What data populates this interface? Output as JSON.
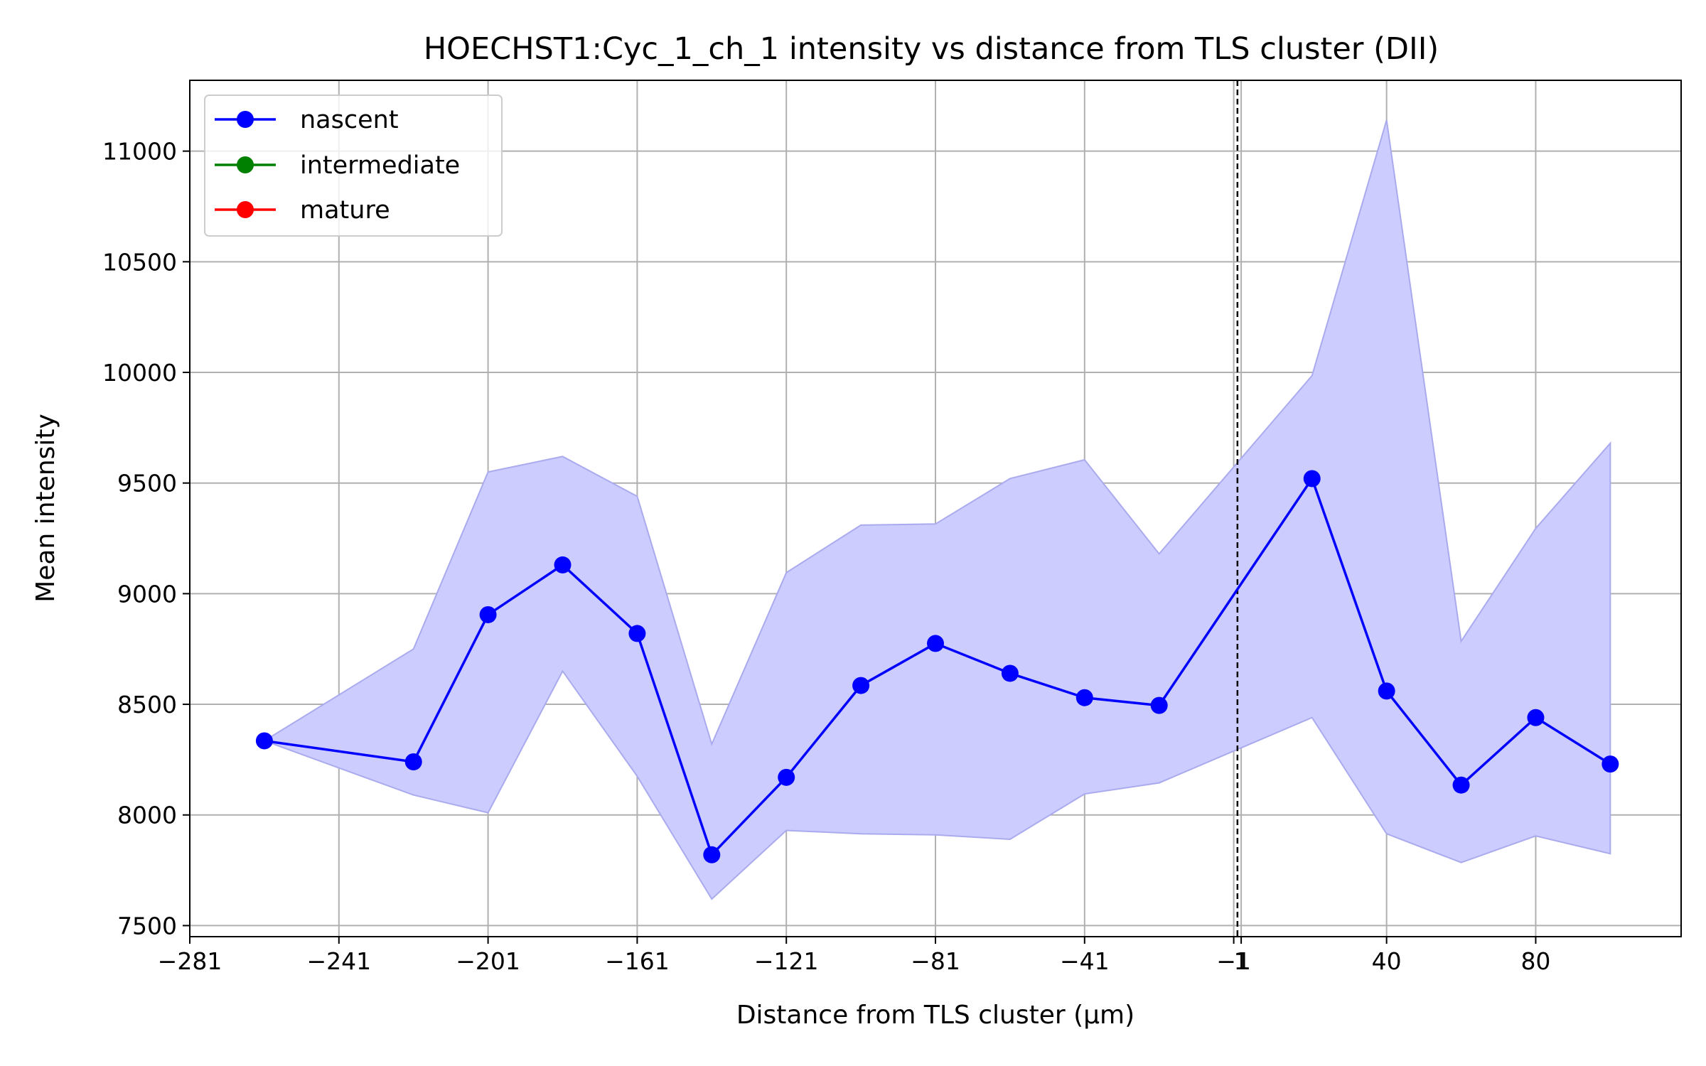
{
  "chart_data": {
    "type": "line",
    "title": "HOECHST1:Cyc_1_ch_1 intensity vs distance from TLS cluster (DII)",
    "xlabel": "Distance from TLS cluster (μm)",
    "ylabel": "Mean intensity",
    "xlim": [
      -281,
      119
    ],
    "ylim": [
      7450,
      11320
    ],
    "x_ticks": [
      -281,
      -241,
      -201,
      -161,
      -121,
      -81,
      -41,
      -1,
      1,
      40,
      80
    ],
    "x_tick_labels": [
      "−281",
      "−241",
      "−201",
      "−161",
      "−121",
      "−81",
      "−41",
      "−1",
      "1",
      "40",
      "80"
    ],
    "y_ticks": [
      7500,
      8000,
      8500,
      9000,
      9500,
      10000,
      10500,
      11000
    ],
    "y_tick_labels": [
      "7500",
      "8000",
      "8500",
      "9000",
      "9500",
      "10000",
      "10500",
      "11000"
    ],
    "grid": true,
    "legend": "top-left",
    "vline_x": 0,
    "series": [
      {
        "name": "nascent",
        "color": "#0000ff",
        "x": [
          -261,
          -221,
          -201,
          -181,
          -161,
          -141,
          -121,
          -101,
          -81,
          -61,
          -41,
          -21,
          20,
          40,
          60,
          80,
          100
        ],
        "y": [
          8335,
          8240,
          8905,
          9130,
          8820,
          7820,
          8170,
          8585,
          8775,
          8640,
          8530,
          8495,
          9520,
          8560,
          8135,
          8440,
          8230
        ],
        "band_upper": [
          8335,
          8750,
          9550,
          9620,
          9440,
          8320,
          9095,
          9310,
          9315,
          9520,
          9605,
          9180,
          9985,
          11140,
          8785,
          9295,
          9680
        ],
        "band_lower": [
          8335,
          8090,
          8010,
          8650,
          8175,
          7620,
          7930,
          7915,
          7910,
          7890,
          8095,
          8145,
          8440,
          7915,
          7785,
          7905,
          7825
        ],
        "band_color": "#ccccff"
      },
      {
        "name": "intermediate",
        "color": "#008000",
        "x": [],
        "y": []
      },
      {
        "name": "mature",
        "color": "#ff0000",
        "x": [],
        "y": []
      }
    ]
  }
}
